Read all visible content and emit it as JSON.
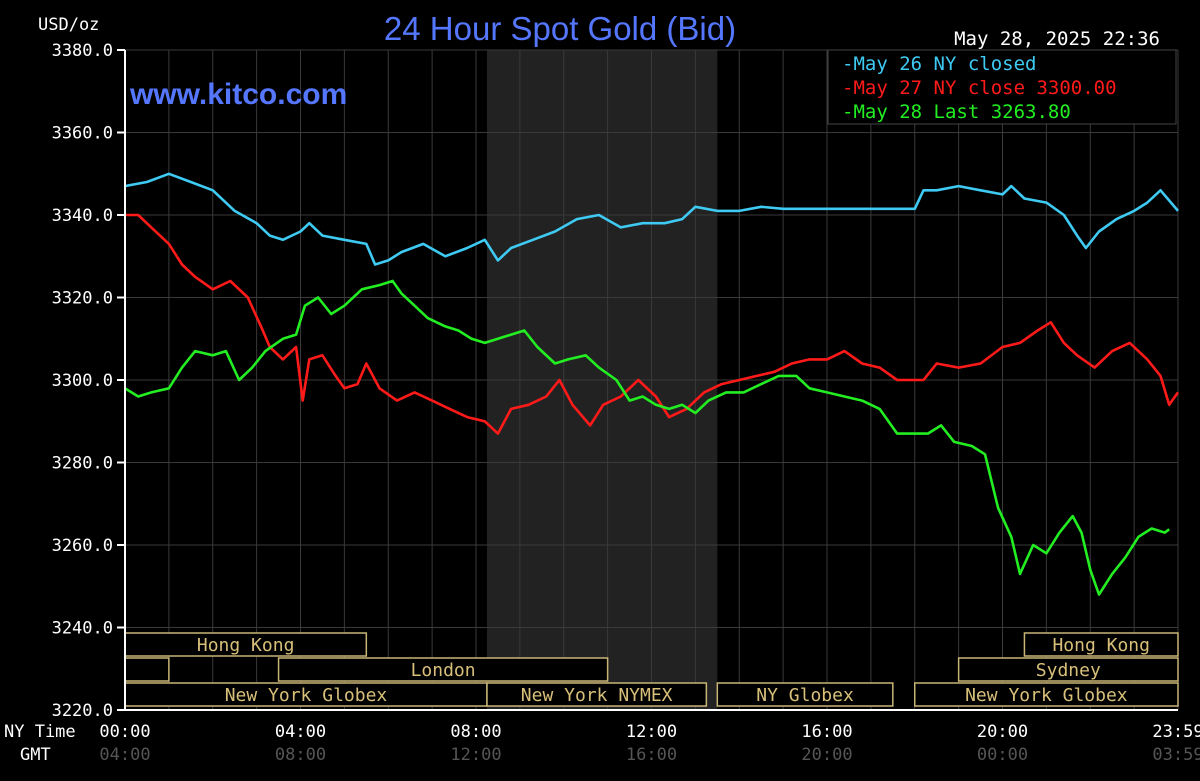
{
  "chart_data": {
    "type": "line",
    "title": "24 Hour Spot Gold (Bid)",
    "watermark": "www.kitco.com",
    "timestamp": "May 28, 2025 22:36",
    "ylabel": "USD/oz",
    "ylim": [
      3220,
      3380
    ],
    "yticks": [
      "3380.0",
      "3360.0",
      "3340.0",
      "3320.0",
      "3300.0",
      "3280.0",
      "3260.0",
      "3240.0",
      "3220.0"
    ],
    "xlim": [
      0,
      24
    ],
    "x_row_labels": {
      "ny": "NY Time",
      "gmt": "GMT"
    },
    "xticks": [
      {
        "x": 0,
        "ny": "00:00",
        "gmt": "04:00"
      },
      {
        "x": 4,
        "ny": "04:00",
        "gmt": "08:00"
      },
      {
        "x": 8,
        "ny": "08:00",
        "gmt": "12:00"
      },
      {
        "x": 12,
        "ny": "12:00",
        "gmt": "16:00"
      },
      {
        "x": 16,
        "ny": "16:00",
        "gmt": "20:00"
      },
      {
        "x": 20,
        "ny": "20:00",
        "gmt": "00:00"
      },
      {
        "x": 24,
        "ny": "23:59",
        "gmt": "03:59"
      }
    ],
    "grid": true,
    "shaded_region": [
      8.25,
      13.5
    ],
    "legend_position": "top-right",
    "legend": [
      {
        "text": "May 26 NY closed",
        "color": "#3ecaf2"
      },
      {
        "text": "May 27 NY close 3300.00",
        "color": "#ff1a1a"
      },
      {
        "text": "May 28 Last 3263.80",
        "color": "#22ee22"
      }
    ],
    "sessions": [
      {
        "label": "Hong Kong",
        "start": 0,
        "end": 5.5,
        "row": 0
      },
      {
        "label": "Hong Kong",
        "start": 20.5,
        "end": 24,
        "row": 0
      },
      {
        "label": "",
        "start": 0,
        "end": 1,
        "row": 1
      },
      {
        "label": "London",
        "start": 3.5,
        "end": 11,
        "row": 1
      },
      {
        "label": "Sydney",
        "start": 19,
        "end": 24,
        "row": 1
      },
      {
        "label": "New York Globex",
        "start": 0,
        "end": 8.25,
        "row": 2
      },
      {
        "label": "New York NYMEX",
        "start": 8.25,
        "end": 13.25,
        "row": 2
      },
      {
        "label": "NY Globex",
        "start": 13.5,
        "end": 17.5,
        "row": 2
      },
      {
        "label": "New York Globex",
        "start": 18,
        "end": 24,
        "row": 2
      }
    ],
    "series": [
      {
        "name": "May 26 NY closed",
        "color": "#3ecaf2",
        "points": [
          [
            0,
            3347
          ],
          [
            0.5,
            3348
          ],
          [
            1,
            3350
          ],
          [
            1.5,
            3348
          ],
          [
            2,
            3346
          ],
          [
            2.5,
            3341
          ],
          [
            3,
            3338
          ],
          [
            3.3,
            3335
          ],
          [
            3.6,
            3334
          ],
          [
            4,
            3336
          ],
          [
            4.2,
            3338
          ],
          [
            4.5,
            3335
          ],
          [
            5,
            3334
          ],
          [
            5.5,
            3333
          ],
          [
            5.7,
            3328
          ],
          [
            6,
            3329
          ],
          [
            6.3,
            3331
          ],
          [
            6.8,
            3333
          ],
          [
            7.3,
            3330
          ],
          [
            7.8,
            3332
          ],
          [
            8.2,
            3334
          ],
          [
            8.5,
            3329
          ],
          [
            8.8,
            3332
          ],
          [
            9.3,
            3334
          ],
          [
            9.8,
            3336
          ],
          [
            10.3,
            3339
          ],
          [
            10.8,
            3340
          ],
          [
            11.3,
            3337
          ],
          [
            11.8,
            3338
          ],
          [
            12.3,
            3338
          ],
          [
            12.7,
            3339
          ],
          [
            13,
            3342
          ],
          [
            13.5,
            3341
          ],
          [
            14,
            3341
          ],
          [
            14.5,
            3342
          ],
          [
            15,
            3341.5
          ],
          [
            16,
            3341.5
          ],
          [
            17,
            3341.5
          ],
          [
            18,
            3341.5
          ],
          [
            18.2,
            3346
          ],
          [
            18.5,
            3346
          ],
          [
            19,
            3347
          ],
          [
            19.5,
            3346
          ],
          [
            20,
            3345
          ],
          [
            20.2,
            3347
          ],
          [
            20.5,
            3344
          ],
          [
            21,
            3343
          ],
          [
            21.4,
            3340
          ],
          [
            21.7,
            3335
          ],
          [
            21.9,
            3332
          ],
          [
            22.2,
            3336
          ],
          [
            22.6,
            3339
          ],
          [
            23,
            3341
          ],
          [
            23.3,
            3343
          ],
          [
            23.6,
            3346
          ],
          [
            24,
            3341
          ]
        ]
      },
      {
        "name": "May 27 NY close 3300.00",
        "color": "#ff1a1a",
        "points": [
          [
            0,
            3340
          ],
          [
            0.3,
            3340
          ],
          [
            0.6,
            3337
          ],
          [
            1,
            3333
          ],
          [
            1.3,
            3328
          ],
          [
            1.6,
            3325
          ],
          [
            2,
            3322
          ],
          [
            2.4,
            3324
          ],
          [
            2.8,
            3320
          ],
          [
            3.1,
            3313
          ],
          [
            3.3,
            3308
          ],
          [
            3.6,
            3305
          ],
          [
            3.9,
            3308
          ],
          [
            4.05,
            3295
          ],
          [
            4.2,
            3305
          ],
          [
            4.5,
            3306
          ],
          [
            4.8,
            3301
          ],
          [
            5,
            3298
          ],
          [
            5.3,
            3299
          ],
          [
            5.5,
            3304
          ],
          [
            5.8,
            3298
          ],
          [
            6.2,
            3295
          ],
          [
            6.6,
            3297
          ],
          [
            7,
            3295
          ],
          [
            7.4,
            3293
          ],
          [
            7.8,
            3291
          ],
          [
            8.2,
            3290
          ],
          [
            8.5,
            3287
          ],
          [
            8.8,
            3293
          ],
          [
            9.2,
            3294
          ],
          [
            9.6,
            3296
          ],
          [
            9.9,
            3300
          ],
          [
            10.2,
            3294
          ],
          [
            10.6,
            3289
          ],
          [
            10.9,
            3294
          ],
          [
            11.3,
            3296
          ],
          [
            11.7,
            3300
          ],
          [
            12.1,
            3296
          ],
          [
            12.4,
            3291
          ],
          [
            12.8,
            3293
          ],
          [
            13.2,
            3297
          ],
          [
            13.6,
            3299
          ],
          [
            14,
            3300
          ],
          [
            14.4,
            3301
          ],
          [
            14.8,
            3302
          ],
          [
            15.2,
            3304
          ],
          [
            15.6,
            3305
          ],
          [
            16,
            3305
          ],
          [
            16.4,
            3307
          ],
          [
            16.8,
            3304
          ],
          [
            17.2,
            3303
          ],
          [
            17.6,
            3300
          ],
          [
            18,
            3300
          ],
          [
            18.2,
            3300
          ],
          [
            18.5,
            3304
          ],
          [
            19,
            3303
          ],
          [
            19.5,
            3304
          ],
          [
            20,
            3308
          ],
          [
            20.4,
            3309
          ],
          [
            20.8,
            3312
          ],
          [
            21.1,
            3314
          ],
          [
            21.4,
            3309
          ],
          [
            21.7,
            3306
          ],
          [
            22.1,
            3303
          ],
          [
            22.5,
            3307
          ],
          [
            22.9,
            3309
          ],
          [
            23.3,
            3305
          ],
          [
            23.6,
            3301
          ],
          [
            23.8,
            3294
          ],
          [
            24,
            3297
          ]
        ]
      },
      {
        "name": "May 28 Last 3263.80",
        "color": "#22ee22",
        "points": [
          [
            0,
            3298
          ],
          [
            0.3,
            3296
          ],
          [
            0.6,
            3297
          ],
          [
            1,
            3298
          ],
          [
            1.3,
            3303
          ],
          [
            1.6,
            3307
          ],
          [
            2,
            3306
          ],
          [
            2.3,
            3307
          ],
          [
            2.6,
            3300
          ],
          [
            2.9,
            3303
          ],
          [
            3.2,
            3307
          ],
          [
            3.6,
            3310
          ],
          [
            3.9,
            3311
          ],
          [
            4.1,
            3318
          ],
          [
            4.4,
            3320
          ],
          [
            4.7,
            3316
          ],
          [
            5,
            3318
          ],
          [
            5.4,
            3322
          ],
          [
            5.8,
            3323
          ],
          [
            6.1,
            3324
          ],
          [
            6.3,
            3321
          ],
          [
            6.6,
            3318
          ],
          [
            6.9,
            3315
          ],
          [
            7.3,
            3313
          ],
          [
            7.6,
            3312
          ],
          [
            7.9,
            3310
          ],
          [
            8.2,
            3309
          ],
          [
            8.5,
            3310
          ],
          [
            8.8,
            3311
          ],
          [
            9.1,
            3312
          ],
          [
            9.4,
            3308
          ],
          [
            9.8,
            3304
          ],
          [
            10.1,
            3305
          ],
          [
            10.5,
            3306
          ],
          [
            10.8,
            3303
          ],
          [
            11.2,
            3300
          ],
          [
            11.5,
            3295
          ],
          [
            11.8,
            3296
          ],
          [
            12.1,
            3294
          ],
          [
            12.4,
            3293
          ],
          [
            12.7,
            3294
          ],
          [
            13,
            3292
          ],
          [
            13.3,
            3295
          ],
          [
            13.7,
            3297
          ],
          [
            14.1,
            3297
          ],
          [
            14.5,
            3299
          ],
          [
            14.9,
            3301
          ],
          [
            15.3,
            3301
          ],
          [
            15.6,
            3298
          ],
          [
            16,
            3297
          ],
          [
            16.4,
            3296
          ],
          [
            16.8,
            3295
          ],
          [
            17.2,
            3293
          ],
          [
            17.6,
            3287
          ],
          [
            18,
            3287
          ],
          [
            18.3,
            3287
          ],
          [
            18.6,
            3289
          ],
          [
            18.9,
            3285
          ],
          [
            19.3,
            3284
          ],
          [
            19.6,
            3282
          ],
          [
            19.9,
            3269
          ],
          [
            20.2,
            3262
          ],
          [
            20.4,
            3253
          ],
          [
            20.7,
            3260
          ],
          [
            21,
            3258
          ],
          [
            21.3,
            3263
          ],
          [
            21.6,
            3267
          ],
          [
            21.8,
            3263
          ],
          [
            22,
            3254
          ],
          [
            22.2,
            3248
          ],
          [
            22.5,
            3253
          ],
          [
            22.8,
            3257
          ],
          [
            23.1,
            3262
          ],
          [
            23.4,
            3264
          ],
          [
            23.7,
            3263
          ],
          [
            23.8,
            3263.8
          ]
        ]
      }
    ]
  }
}
